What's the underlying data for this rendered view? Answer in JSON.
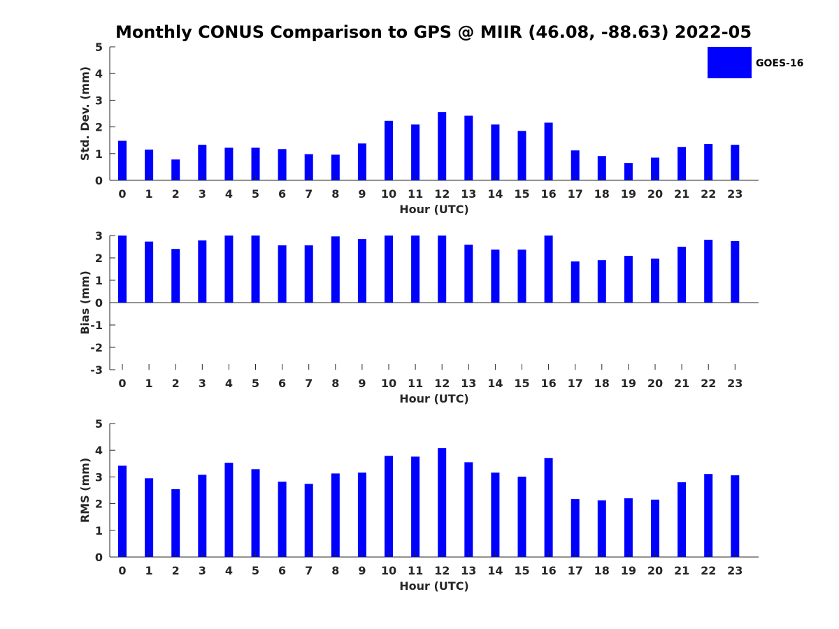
{
  "title": "Monthly CONUS Comparison to GPS @ MIIR (46.08, -88.63) 2022-05",
  "legend": {
    "label": "GOES-16",
    "color": "#0000ff"
  },
  "chart_data": [
    {
      "type": "bar",
      "id": "stddev",
      "xlabel": "Hour (UTC)",
      "ylabel": "Std. Dev. (mm)",
      "ylim": [
        0,
        5
      ],
      "yticks": [
        0,
        1,
        2,
        3,
        4,
        5
      ],
      "categories": [
        "0",
        "1",
        "2",
        "3",
        "4",
        "5",
        "6",
        "7",
        "8",
        "9",
        "10",
        "11",
        "12",
        "13",
        "14",
        "15",
        "16",
        "17",
        "18",
        "19",
        "20",
        "21",
        "22",
        "23"
      ],
      "series": [
        {
          "name": "GOES-16",
          "color": "#0000ff",
          "values": [
            1.48,
            1.15,
            0.78,
            1.33,
            1.22,
            1.22,
            1.17,
            0.98,
            0.96,
            1.38,
            2.23,
            2.09,
            2.56,
            2.42,
            2.09,
            1.85,
            2.16,
            1.12,
            0.91,
            0.65,
            0.85,
            1.25,
            1.36,
            1.33
          ]
        }
      ]
    },
    {
      "type": "bar",
      "id": "bias",
      "xlabel": "Hour (UTC)",
      "ylabel": "Bias (mm)",
      "ylim": [
        -3,
        3
      ],
      "yticks": [
        -3,
        -2,
        -1,
        0,
        1,
        2,
        3
      ],
      "categories": [
        "0",
        "1",
        "2",
        "3",
        "4",
        "5",
        "6",
        "7",
        "8",
        "9",
        "10",
        "11",
        "12",
        "13",
        "14",
        "15",
        "16",
        "17",
        "18",
        "19",
        "20",
        "21",
        "22",
        "23"
      ],
      "series": [
        {
          "name": "GOES-16",
          "color": "#0000ff",
          "values": [
            3.0,
            2.73,
            2.4,
            2.78,
            3.0,
            3.0,
            2.56,
            2.56,
            2.96,
            2.84,
            3.0,
            3.0,
            3.0,
            2.59,
            2.37,
            2.37,
            3.0,
            1.84,
            1.9,
            2.09,
            1.97,
            2.5,
            2.81,
            2.75
          ]
        }
      ]
    },
    {
      "type": "bar",
      "id": "rms",
      "xlabel": "Hour (UTC)",
      "ylabel": "RMS (mm)",
      "ylim": [
        0,
        5
      ],
      "yticks": [
        0,
        1,
        2,
        3,
        4,
        5
      ],
      "categories": [
        "0",
        "1",
        "2",
        "3",
        "4",
        "5",
        "6",
        "7",
        "8",
        "9",
        "10",
        "11",
        "12",
        "13",
        "14",
        "15",
        "16",
        "17",
        "18",
        "19",
        "20",
        "21",
        "22",
        "23"
      ],
      "series": [
        {
          "name": "GOES-16",
          "color": "#0000ff",
          "values": [
            3.42,
            2.95,
            2.54,
            3.08,
            3.53,
            3.29,
            2.82,
            2.74,
            3.13,
            3.16,
            3.79,
            3.76,
            4.08,
            3.55,
            3.16,
            3.01,
            3.71,
            2.17,
            2.12,
            2.2,
            2.15,
            2.8,
            3.11,
            3.06
          ]
        }
      ]
    }
  ]
}
